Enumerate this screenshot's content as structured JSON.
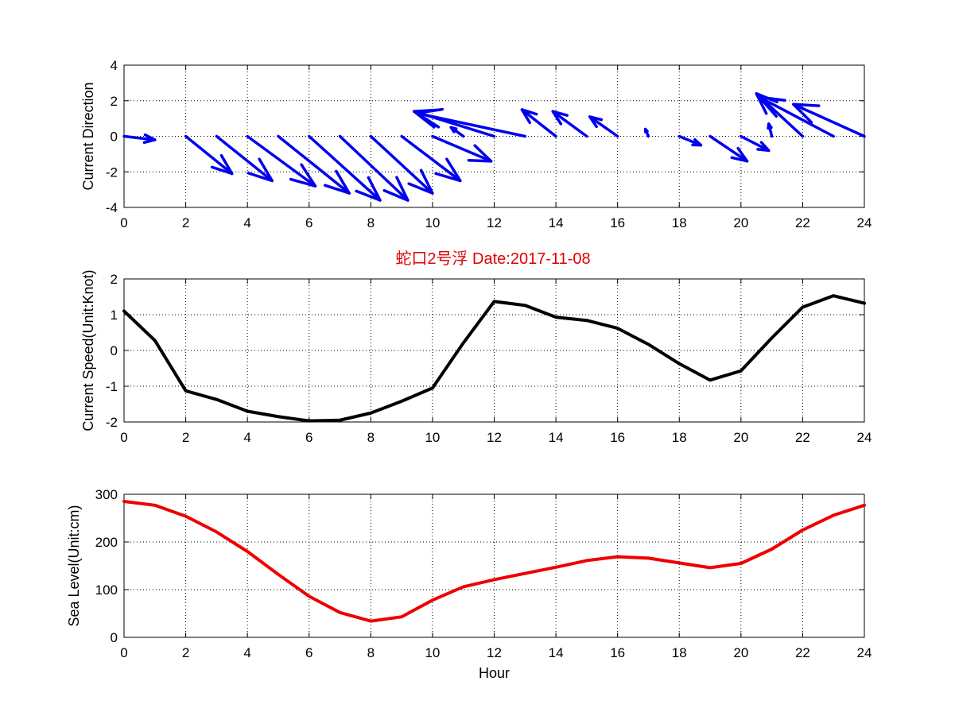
{
  "title": "蛇口2号浮   Date:2017-11-08",
  "colors": {
    "title": "#e00000",
    "arrows": "#0000ee",
    "speed": "#000000",
    "sea_level": "#ee0000"
  },
  "chart_data": [
    {
      "type": "quiver",
      "ylabel": "Current Direction",
      "xlabel": "",
      "xlim": [
        0,
        24
      ],
      "ylim": [
        -4,
        4
      ],
      "xticks": [
        0,
        2,
        4,
        6,
        8,
        10,
        12,
        14,
        16,
        18,
        20,
        22,
        24
      ],
      "yticks": [
        4,
        2,
        0,
        -2,
        -4
      ],
      "grid": true,
      "arrows": [
        {
          "x": 0,
          "u": 1.0,
          "v": -0.2
        },
        {
          "x": 2,
          "u": 1.5,
          "v": -2.1
        },
        {
          "x": 3,
          "u": 1.8,
          "v": -2.5
        },
        {
          "x": 4,
          "u": 2.2,
          "v": -2.8
        },
        {
          "x": 5,
          "u": 2.3,
          "v": -3.2
        },
        {
          "x": 6,
          "u": 2.3,
          "v": -3.6
        },
        {
          "x": 7,
          "u": 2.2,
          "v": -3.6
        },
        {
          "x": 8,
          "u": 2.0,
          "v": -3.2
        },
        {
          "x": 9,
          "u": 1.9,
          "v": -2.5
        },
        {
          "x": 10,
          "u": 1.9,
          "v": -1.4
        },
        {
          "x": 11,
          "u": -0.4,
          "v": 0.5
        },
        {
          "x": 12,
          "u": -2.6,
          "v": 1.4
        },
        {
          "x": 13,
          "u": -3.5,
          "v": 1.3
        },
        {
          "x": 14,
          "u": -1.1,
          "v": 1.5
        },
        {
          "x": 15,
          "u": -1.1,
          "v": 1.4
        },
        {
          "x": 16,
          "u": -0.9,
          "v": 1.1
        },
        {
          "x": 17,
          "u": -0.1,
          "v": 0.4
        },
        {
          "x": 18,
          "u": 0.7,
          "v": -0.5
        },
        {
          "x": 19,
          "u": 1.2,
          "v": -1.4
        },
        {
          "x": 20,
          "u": 0.9,
          "v": -0.8
        },
        {
          "x": 21,
          "u": -0.1,
          "v": 0.7
        },
        {
          "x": 22,
          "u": -1.5,
          "v": 2.4
        },
        {
          "x": 23,
          "u": -2.4,
          "v": 2.2
        },
        {
          "x": 24,
          "u": -2.3,
          "v": 1.8
        }
      ]
    },
    {
      "type": "line",
      "ylabel": "Current Speed(Unit:Knot)",
      "xlabel": "",
      "xlim": [
        0,
        24
      ],
      "ylim": [
        -2,
        2
      ],
      "xticks": [
        0,
        2,
        4,
        6,
        8,
        10,
        12,
        14,
        16,
        18,
        20,
        22,
        24
      ],
      "yticks": [
        2,
        1,
        0,
        -1,
        -2
      ],
      "grid": true,
      "x": [
        0,
        1,
        2,
        3,
        4,
        5,
        6,
        7,
        8,
        9,
        10,
        11,
        12,
        13,
        14,
        15,
        16,
        17,
        18,
        19,
        20,
        21,
        22,
        23,
        24
      ],
      "values": [
        1.1,
        0.28,
        -1.13,
        -1.37,
        -1.7,
        -1.85,
        -1.97,
        -1.95,
        -1.75,
        -1.42,
        -1.05,
        0.21,
        1.37,
        1.26,
        0.93,
        0.84,
        0.62,
        0.17,
        -0.37,
        -0.83,
        -0.57,
        0.35,
        1.21,
        1.53,
        1.32
      ]
    },
    {
      "type": "line",
      "ylabel": "Sea Level(Unit:cm)",
      "xlabel": "Hour",
      "xlim": [
        0,
        24
      ],
      "ylim": [
        0,
        300
      ],
      "xticks": [
        0,
        2,
        4,
        6,
        8,
        10,
        12,
        14,
        16,
        18,
        20,
        22,
        24
      ],
      "yticks": [
        300,
        200,
        100,
        0
      ],
      "grid": true,
      "x": [
        0,
        1,
        2,
        3,
        4,
        5,
        6,
        7,
        8,
        9,
        10,
        11,
        12,
        13,
        14,
        15,
        16,
        17,
        18,
        19,
        20,
        21,
        22,
        23,
        24
      ],
      "values": [
        285,
        277,
        254,
        221,
        180,
        132,
        86,
        52,
        34,
        43,
        78,
        106,
        121,
        134,
        147,
        161,
        169,
        166,
        156,
        146,
        155,
        185,
        225,
        256,
        277
      ]
    }
  ]
}
